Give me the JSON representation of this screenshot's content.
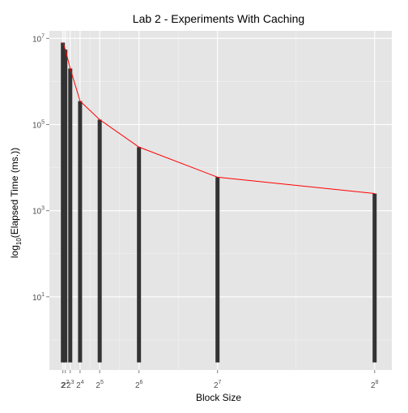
{
  "chart_data": {
    "type": "bar",
    "title": "Lab 2 - Experiments With Caching",
    "xlabel": "Block Size",
    "ylabel_prefix": "log",
    "ylabel_subscript": "10",
    "ylabel_suffix": "(Elapsed Time (ms.))",
    "x_scale": "linear",
    "y_scale": "log10",
    "x_ticks": [
      {
        "value": 2,
        "base": "2",
        "exp": ""
      },
      {
        "value": 4,
        "base": "2",
        "exp": "2"
      },
      {
        "value": 8,
        "base": "2",
        "exp": "3"
      },
      {
        "value": 16,
        "base": "2",
        "exp": "4"
      },
      {
        "value": 32,
        "base": "2",
        "exp": "5"
      },
      {
        "value": 64,
        "base": "2",
        "exp": "6"
      },
      {
        "value": 128,
        "base": "2",
        "exp": "7"
      },
      {
        "value": 256,
        "base": "2",
        "exp": "8"
      }
    ],
    "y_ticks": [
      {
        "value": 10,
        "base": "10",
        "exp": "1"
      },
      {
        "value": 1000,
        "base": "10",
        "exp": "3"
      },
      {
        "value": 100000,
        "base": "10",
        "exp": "5"
      },
      {
        "value": 10000000,
        "base": "10",
        "exp": "7"
      }
    ],
    "xlim": [
      -9,
      270
    ],
    "ylim": [
      0.2,
      15000000
    ],
    "bar_baseline": 0.3,
    "grid": true,
    "series": [
      {
        "x": [
          2,
          4,
          8,
          16,
          32,
          64,
          128,
          256
        ],
        "values": [
          8000000,
          5500000,
          2000000,
          350000,
          130000,
          30000,
          6000,
          2500
        ],
        "bar_color": "#333333",
        "line_color": "#ff0000"
      }
    ]
  }
}
